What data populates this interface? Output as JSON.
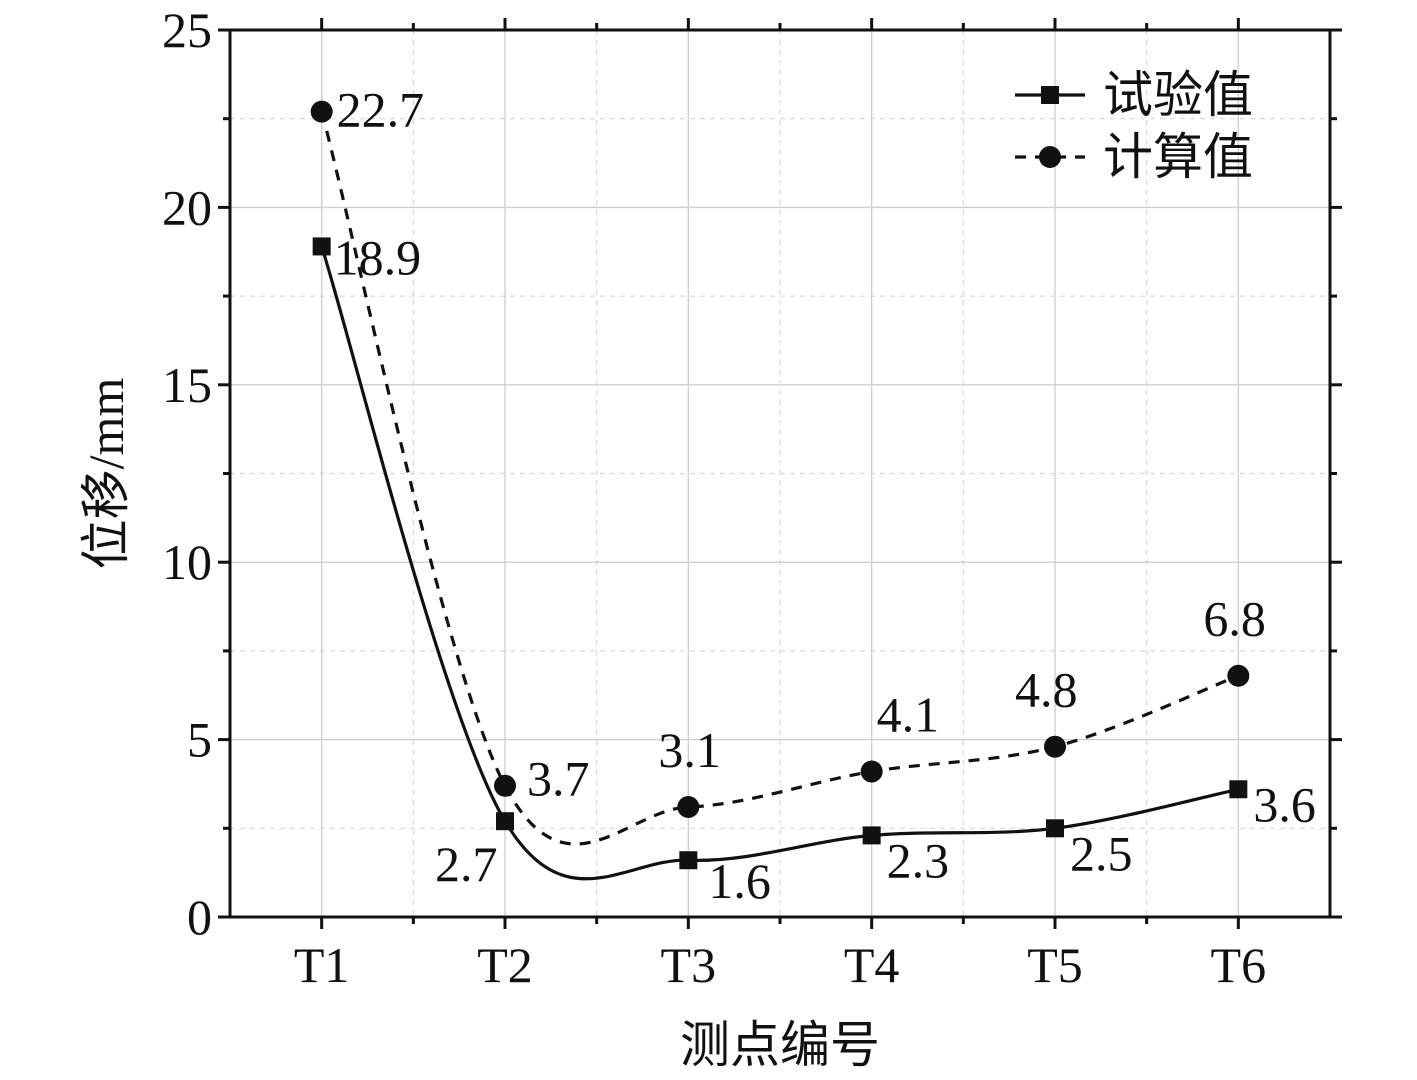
{
  "chart_data": {
    "type": "line",
    "title": "",
    "xlabel": "测点编号",
    "ylabel": "位移/mm",
    "categories": [
      "T1",
      "T2",
      "T3",
      "T4",
      "T5",
      "T6"
    ],
    "ylim": [
      0,
      25
    ],
    "yticks": [
      0,
      5,
      10,
      15,
      20,
      25
    ],
    "grid": true,
    "legend_position": "top-right",
    "series": [
      {
        "name": "试验值",
        "values": [
          18.9,
          2.7,
          1.6,
          2.3,
          2.5,
          3.6
        ],
        "labels": [
          "18.9",
          "2.7",
          "1.6",
          "2.3",
          "2.5",
          "3.6"
        ],
        "marker": "square",
        "line_style": "solid",
        "color": "#111111"
      },
      {
        "name": "计算值",
        "values": [
          22.7,
          3.7,
          3.1,
          4.1,
          4.8,
          6.8
        ],
        "labels": [
          "22.7",
          "3.7",
          "3.1",
          "4.1",
          "4.8",
          "6.8"
        ],
        "marker": "circle",
        "line_style": "dashed",
        "color": "#111111"
      }
    ]
  }
}
